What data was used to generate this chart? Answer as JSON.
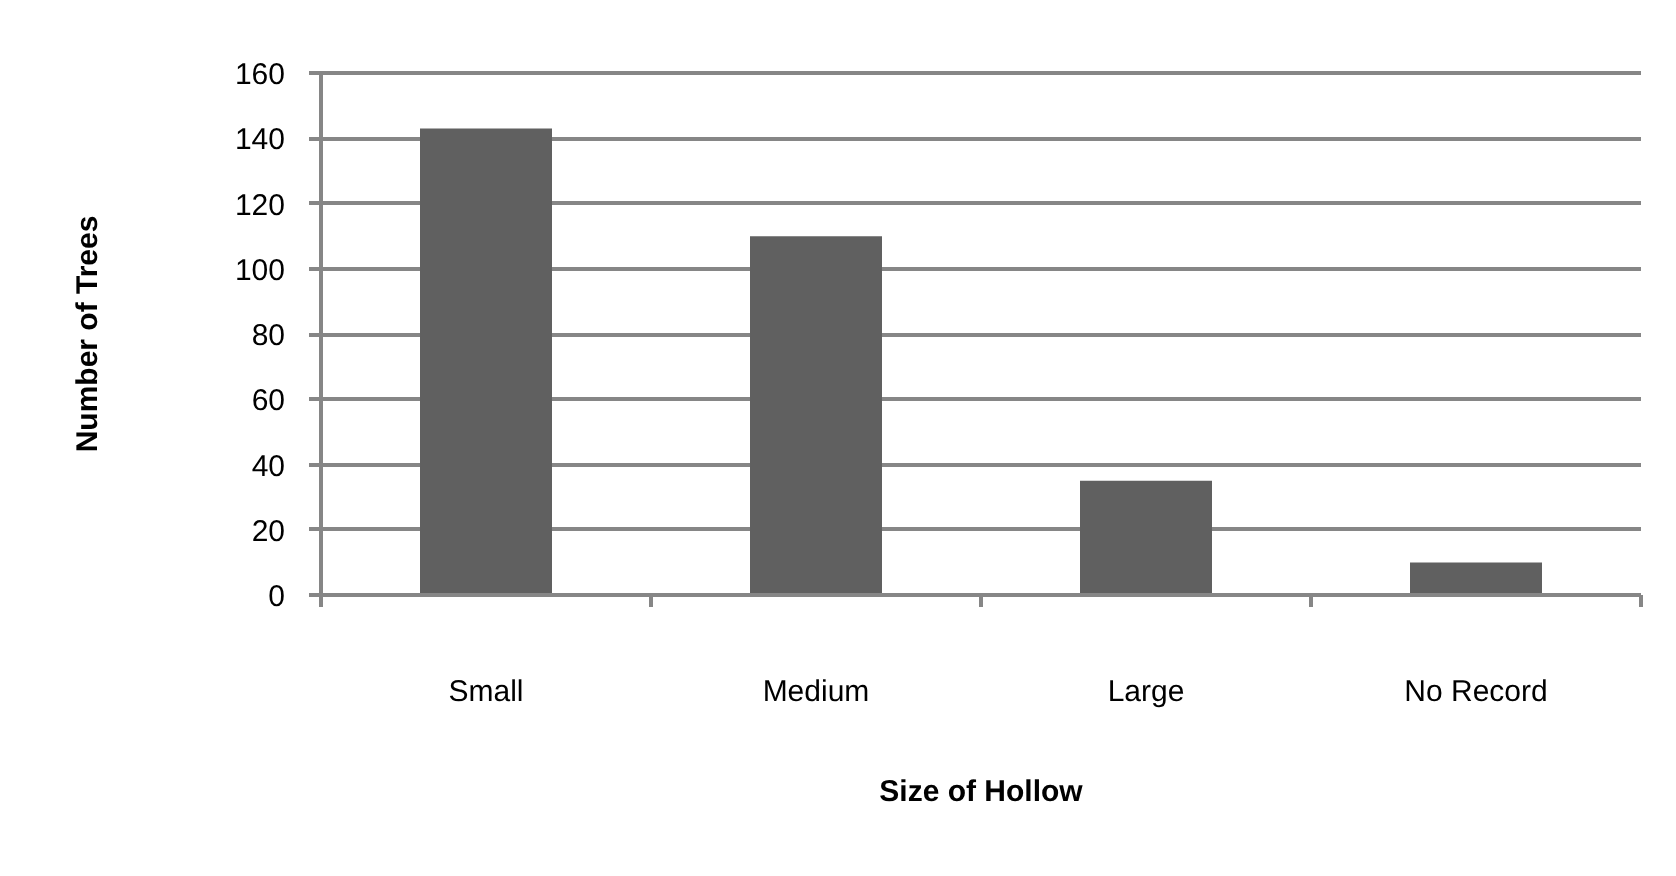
{
  "chart_data": {
    "type": "bar",
    "xlabel": "Size of Hollow",
    "ylabel": "Number of Trees",
    "categories": [
      "Small",
      "Medium",
      "Large",
      "No Record"
    ],
    "values": [
      143,
      110,
      35,
      10
    ],
    "color": "#606060",
    "ylim": [
      0,
      160
    ],
    "yticks": [
      0,
      20,
      40,
      60,
      80,
      100,
      120,
      140,
      160
    ],
    "grid": "y"
  }
}
